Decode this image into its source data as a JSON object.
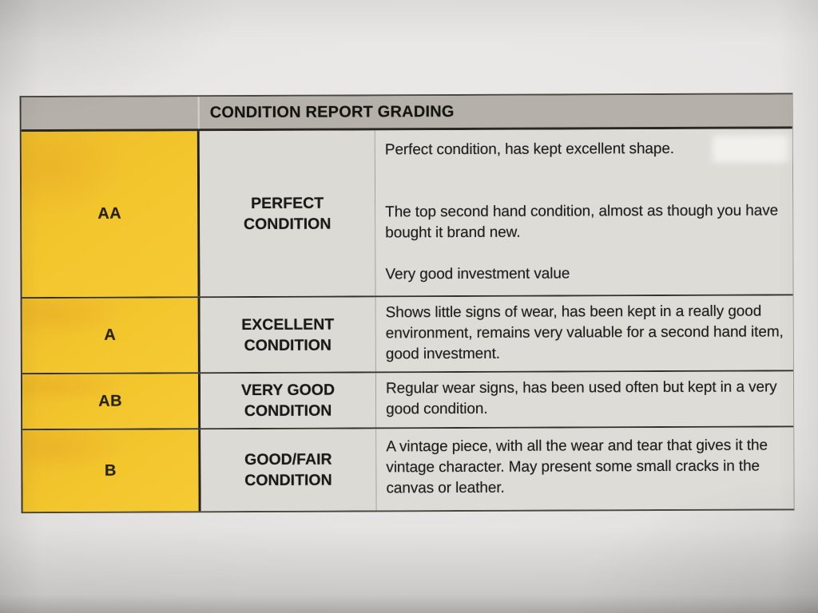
{
  "table": {
    "header": {
      "title": "CONDITION REPORT GRADING"
    },
    "rows": [
      {
        "grade": "AA",
        "condition_lines": [
          "PERFECT",
          "CONDITION"
        ],
        "paragraphs": [
          "Perfect condition, has kept excellent shape.",
          "The top second hand condition, almost as though you have bought it brand new.",
          "Very good investment value"
        ]
      },
      {
        "grade": "A",
        "condition_lines": [
          "EXCELLENT",
          "CONDITION"
        ],
        "paragraphs": [
          "Shows little signs of wear, has been kept in a really good environment, remains very valuable for a second hand item, good investment."
        ]
      },
      {
        "grade": "AB",
        "condition_lines": [
          "VERY GOOD",
          "CONDITION"
        ],
        "paragraphs": [
          "Regular wear signs, has been used often but kept in a very good condition."
        ]
      },
      {
        "grade": "B",
        "condition_lines": [
          "GOOD/FAIR",
          "CONDITION"
        ],
        "paragraphs": [
          "A vintage piece, with all the wear and tear that gives it the vintage character. May present some small cracks in the canvas or leather."
        ]
      }
    ]
  },
  "colors": {
    "grade_column_yellow": "#F3C52D",
    "header_band_gray": "#B5B1AA",
    "cell_background_gray": "#DDDBD6",
    "paper_background": "#E8E6E5",
    "text": "#1D1B18"
  }
}
